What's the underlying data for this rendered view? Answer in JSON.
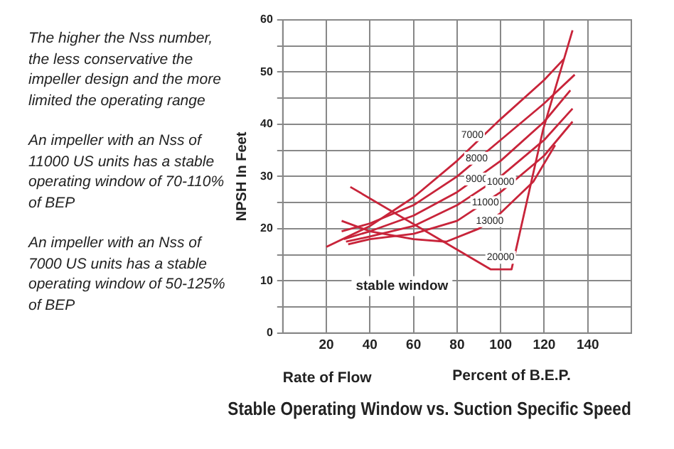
{
  "chart_data": {
    "type": "line",
    "title": "Stable Operating Window vs. Suction Specific Speed",
    "xlabel": "Rate of Flow",
    "ylabel": "NPSH In Feet",
    "xlim": [
      0,
      160
    ],
    "xticks": [
      20,
      40,
      60,
      80,
      100,
      120,
      140
    ],
    "ylim": [
      0,
      60
    ],
    "yticks": [
      0,
      {
        "value": 5,
        "label": null
      },
      10,
      {
        "value": 15,
        "label": null
      },
      20,
      {
        "value": 25,
        "label": null
      },
      30,
      {
        "value": 35,
        "label": null
      },
      40,
      {
        "value": 45,
        "label": null
      },
      50,
      {
        "value": 55,
        "label": null
      },
      60
    ],
    "grid": true,
    "legend": false,
    "marker": "none",
    "line_style": "solid",
    "series": [
      {
        "color": "#c8243a",
        "x": [
          20,
          40,
          60,
          80,
          100,
          120,
          129
        ],
        "values": [
          16.5,
          20.5,
          26,
          33,
          41,
          48.5,
          52.5
        ]
      },
      {
        "color": "#c8243a",
        "x": [
          27,
          40,
          60,
          80,
          100,
          120,
          134
        ],
        "values": [
          19.5,
          21,
          24.5,
          30,
          37,
          44,
          49.5
        ]
      },
      {
        "color": "#c8243a",
        "x": [
          28,
          40,
          60,
          80,
          100,
          120,
          132
        ],
        "values": [
          18,
          19.5,
          22.5,
          27,
          33,
          40.5,
          46.5
        ]
      },
      {
        "color": "#c8243a",
        "x": [
          29,
          40,
          60,
          80,
          100,
          120,
          133
        ],
        "values": [
          17.5,
          18.5,
          20.5,
          24.5,
          30,
          37,
          43
        ]
      },
      {
        "color": "#c8243a",
        "x": [
          30,
          40,
          60,
          80,
          100,
          120,
          133
        ],
        "values": [
          17,
          18,
          19,
          21.5,
          27,
          34,
          40.5
        ]
      },
      {
        "color": "#c8243a",
        "x": [
          27,
          40,
          60,
          75,
          90,
          100,
          115,
          125
        ],
        "values": [
          21.5,
          19.5,
          18,
          17.5,
          20,
          23,
          29,
          36
        ]
      },
      {
        "color": "#c8243a",
        "x": [
          31,
          95.5,
          105,
          119.5,
          133
        ],
        "values": [
          28,
          12.2,
          12.2,
          39,
          58
        ]
      }
    ],
    "annotations": [
      "The higher the Nss number, the less conservative the impeller design and the more limited the operating range",
      "An impeller with an Nss of 11000 US units has a stable operating window of 70-110% of BEP",
      "An impeller with an Nss of 7000 US units has a stable operating window of 50-125% of BEP",
      "Percent of B.E.P.",
      {
        "text": "7000",
        "x": 87,
        "y": 38
      },
      {
        "text": "8000",
        "x": 89,
        "y": 33.5
      },
      {
        "text": "9000",
        "x": 89,
        "y": 29.5
      },
      {
        "text": "10000",
        "x": 100,
        "y": 29
      },
      {
        "text": "11000",
        "x": 93,
        "y": 25
      },
      {
        "text": "13000",
        "x": 95,
        "y": 21.5
      },
      {
        "text": "20000",
        "x": 100,
        "y": 14.5
      },
      "stable window"
    ]
  }
}
